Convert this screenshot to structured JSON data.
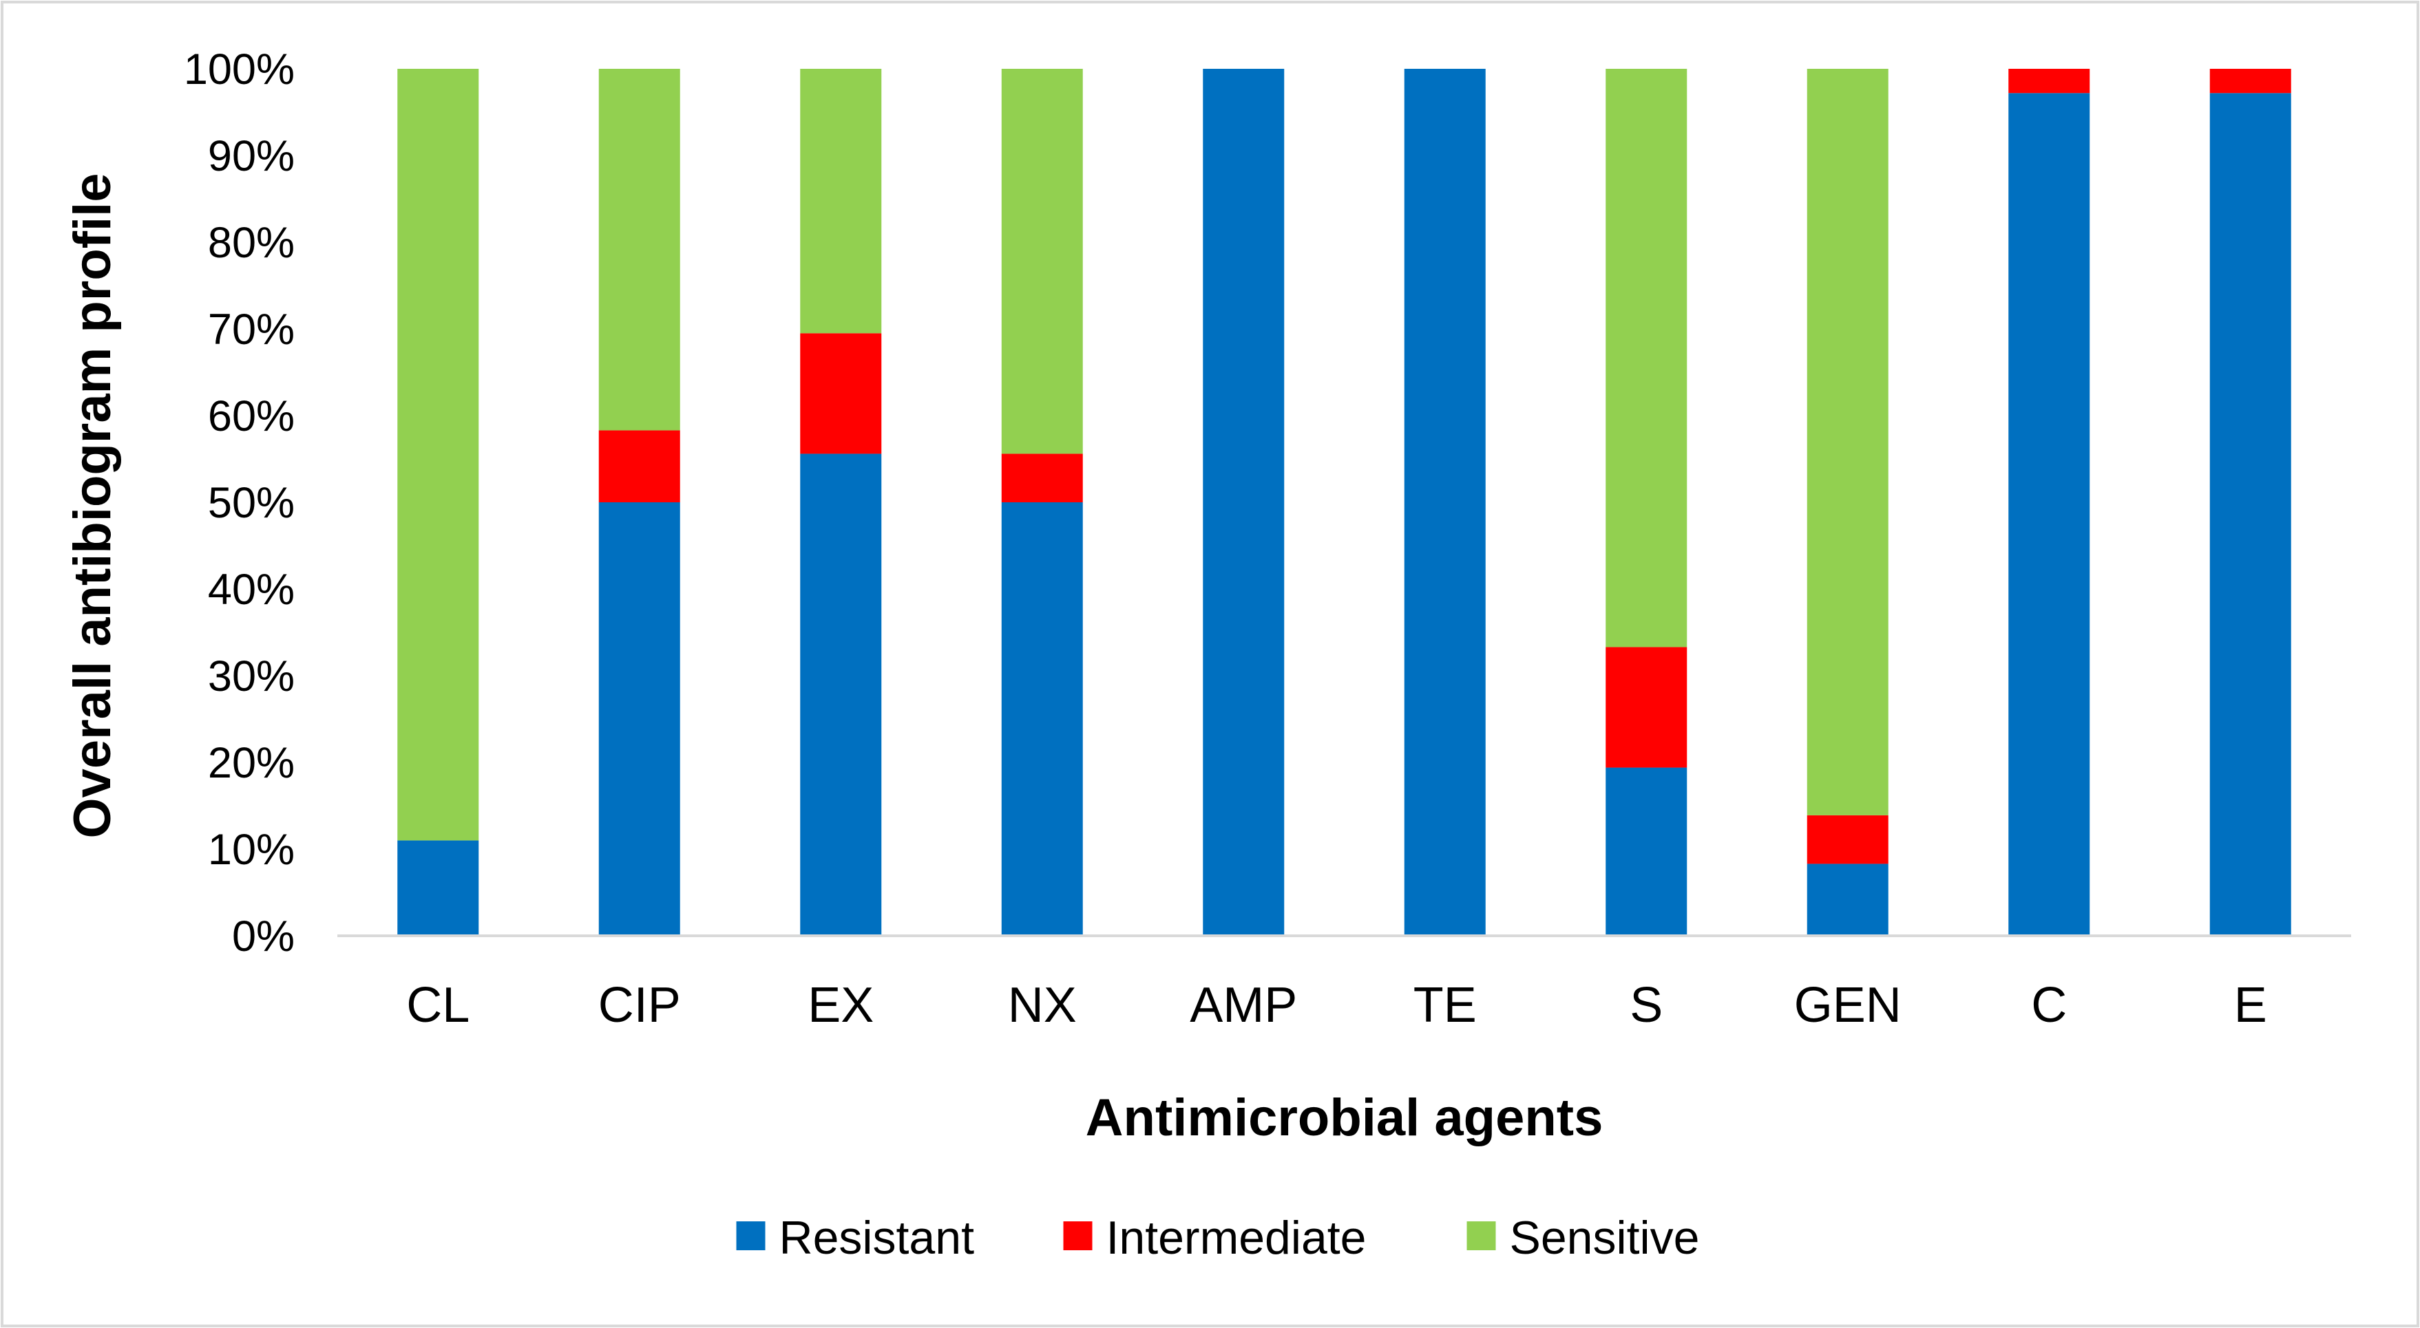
{
  "chart_data": {
    "type": "bar",
    "stacked": true,
    "categories": [
      "CL",
      "CIP",
      "EX",
      "NX",
      "AMP",
      "TE",
      "S",
      "GEN",
      "C",
      "E"
    ],
    "series": [
      {
        "name": "Resistant",
        "color": "#0070C0",
        "values": [
          11,
          50,
          55.6,
          50,
          100,
          100,
          19.4,
          8.3,
          97.2,
          97.2
        ]
      },
      {
        "name": "Intermediate",
        "color": "#FF0000",
        "values": [
          0,
          8.3,
          13.9,
          5.6,
          0,
          0,
          13.9,
          5.6,
          2.8,
          2.8
        ]
      },
      {
        "name": "Sensitive",
        "color": "#92D050",
        "values": [
          89,
          41.7,
          30.5,
          44.4,
          0,
          0,
          66.7,
          86.1,
          0,
          0
        ]
      }
    ],
    "xlabel": "Antimicrobial agents",
    "ylabel": "Overall antibiogram profile",
    "ylim": [
      0,
      100
    ],
    "y_ticks": [
      "0%",
      "10%",
      "20%",
      "30%",
      "40%",
      "50%",
      "60%",
      "70%",
      "80%",
      "90%",
      "100%"
    ],
    "grid": false,
    "legend_position": "bottom"
  }
}
